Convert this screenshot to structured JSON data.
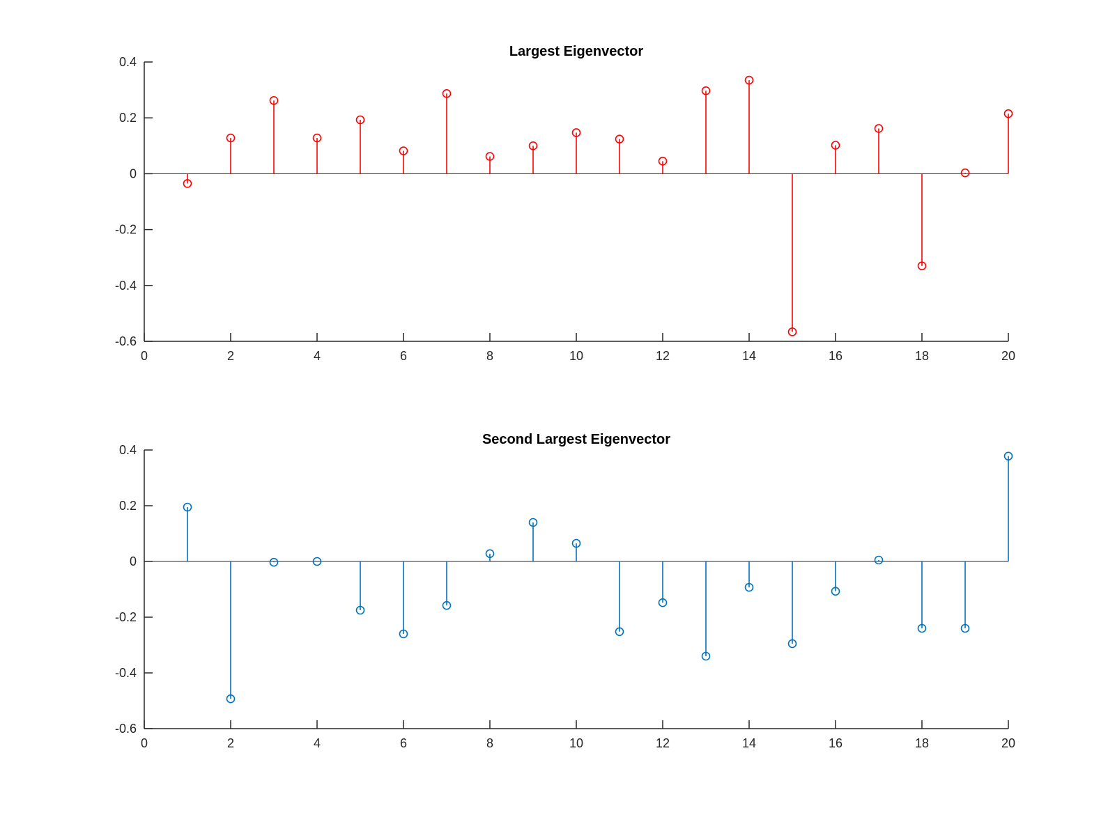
{
  "figure": {
    "background": "#ffffff",
    "axis_color": "#262626"
  },
  "chart_data": [
    {
      "type": "stem",
      "title": "Largest Eigenvector",
      "xlabel": "",
      "ylabel": "",
      "xlim": [
        0,
        20
      ],
      "ylim": [
        -0.6,
        0.4
      ],
      "xticks": [
        0,
        2,
        4,
        6,
        8,
        10,
        12,
        14,
        16,
        18,
        20
      ],
      "xtick_labels": [
        "0",
        "2",
        "4",
        "6",
        "8",
        "10",
        "12",
        "14",
        "16",
        "18",
        "20"
      ],
      "yticks": [
        -0.6,
        -0.4,
        -0.2,
        0,
        0.2,
        0.4
      ],
      "ytick_labels": [
        "-0.6",
        "-0.4",
        "-0.2",
        "0",
        "0.2",
        "0.4"
      ],
      "grid": false,
      "color": "#ff0000",
      "x": [
        1,
        2,
        3,
        4,
        5,
        6,
        7,
        8,
        9,
        10,
        11,
        12,
        13,
        14,
        15,
        16,
        17,
        18,
        19,
        20
      ],
      "values": [
        -0.035,
        0.128,
        0.262,
        0.128,
        0.193,
        0.082,
        0.287,
        0.062,
        0.1,
        0.147,
        0.124,
        0.045,
        0.297,
        0.335,
        -0.566,
        0.102,
        0.162,
        -0.33,
        0.003,
        0.215
      ]
    },
    {
      "type": "stem",
      "title": "Second Largest Eigenvector",
      "xlabel": "",
      "ylabel": "",
      "xlim": [
        0,
        20
      ],
      "ylim": [
        -0.6,
        0.4
      ],
      "xticks": [
        0,
        2,
        4,
        6,
        8,
        10,
        12,
        14,
        16,
        18,
        20
      ],
      "xtick_labels": [
        "0",
        "2",
        "4",
        "6",
        "8",
        "10",
        "12",
        "14",
        "16",
        "18",
        "20"
      ],
      "yticks": [
        -0.6,
        -0.4,
        -0.2,
        0,
        0.2,
        0.4
      ],
      "ytick_labels": [
        "-0.6",
        "-0.4",
        "-0.2",
        "0",
        "0.2",
        "0.4"
      ],
      "grid": false,
      "color": "#0072bd",
      "x": [
        1,
        2,
        3,
        4,
        5,
        6,
        7,
        8,
        9,
        10,
        11,
        12,
        13,
        14,
        15,
        16,
        17,
        18,
        19,
        20
      ],
      "values": [
        0.195,
        -0.493,
        -0.003,
        0.0,
        -0.175,
        -0.26,
        -0.158,
        0.028,
        0.14,
        0.065,
        -0.252,
        -0.148,
        -0.34,
        -0.093,
        -0.295,
        -0.107,
        0.005,
        -0.24,
        -0.24,
        0.378
      ]
    }
  ]
}
